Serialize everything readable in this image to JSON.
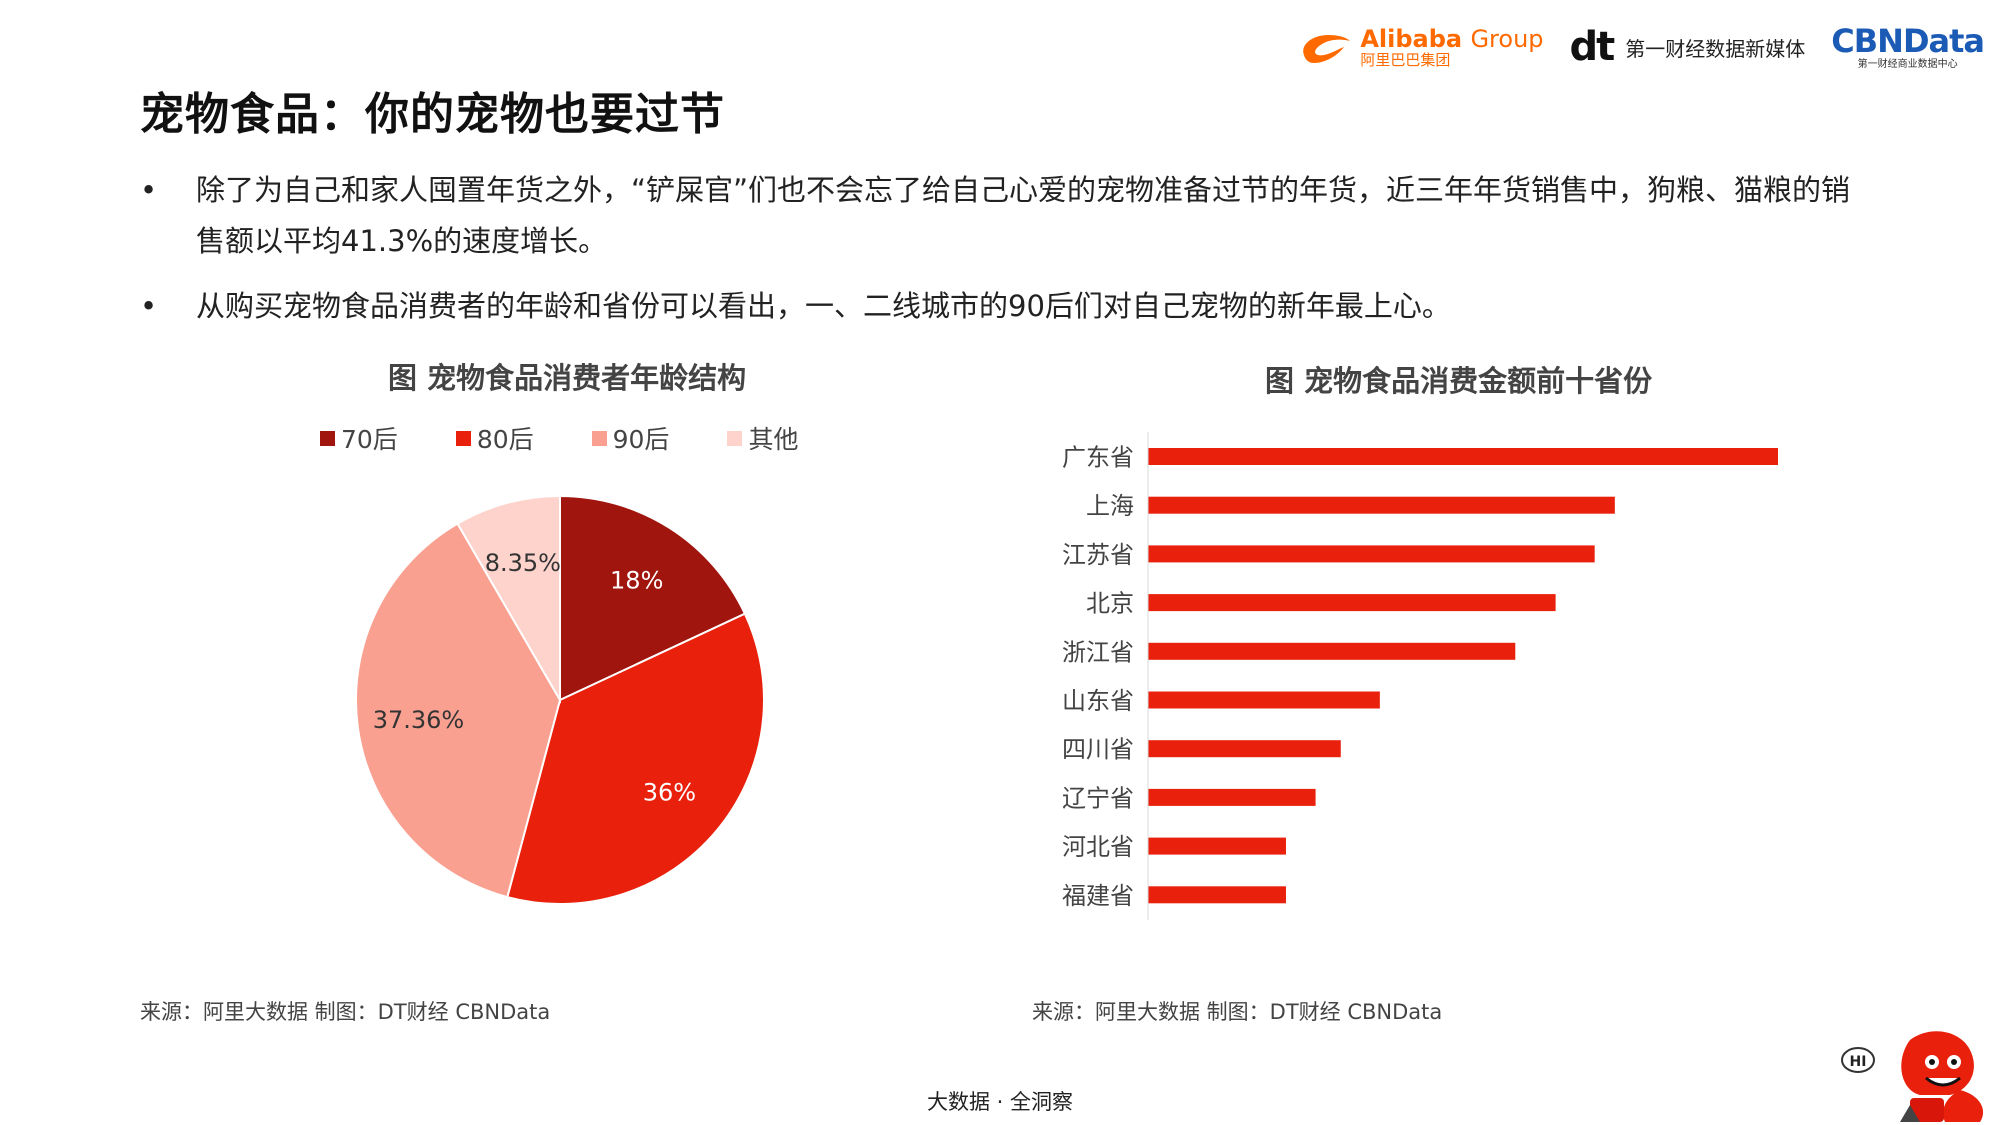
{
  "header": {
    "logos": {
      "alibaba_main": "Alibaba",
      "alibaba_group": "Group",
      "alibaba_cn": "阿里巴巴集团",
      "dt_mark": "dt",
      "dt_text": "第一财经数据新媒体",
      "cbn_main": "CBNData",
      "cbn_sub": "第一财经商业数据中心"
    }
  },
  "page": {
    "title": "宠物食品：你的宠物也要过节",
    "bullet_marker": "•",
    "bullets": [
      "除了为自己和家人囤置年货之外，“铲屎官”们也不会忘了给自己心爱的宠物准备过节的年货，近三年年货销售中，狗粮、猫粮的销售额以平均41.3%的速度增长。",
      "从购买宠物食品消费者的年龄和省份可以看出，一、二线城市的90后们对自己宠物的新年最上心。"
    ],
    "source_left": "来源：阿里大数据   制图：DT财经    CBNData",
    "source_right": "来源：阿里大数据   制图：DT财经    CBNData",
    "footer": "大数据 · 全洞察",
    "mascot_text": "HI"
  },
  "chart_data": [
    {
      "type": "pie",
      "title": "图 宠物食品消费者年龄结构",
      "legend_position": "top",
      "categories": [
        "70后",
        "80后",
        "90后",
        "其他"
      ],
      "values": [
        18,
        36,
        37.36,
        8.35
      ],
      "labels": [
        "18%",
        "36%",
        "37.36%",
        "8.35%"
      ],
      "colors": [
        "#a0150e",
        "#e8200c",
        "#f9a090",
        "#fdd3cc"
      ],
      "label_colors": [
        "#ffffff",
        "#ffffff",
        "#333333",
        "#333333"
      ]
    },
    {
      "type": "bar",
      "orientation": "horizontal",
      "title": "图 宠物食品消费金额前十省份",
      "categories": [
        "广东省",
        "上海",
        "江苏省",
        "北京",
        "浙江省",
        "山东省",
        "四川省",
        "辽宁省",
        "河北省",
        "福建省"
      ],
      "values": [
        100,
        74.1,
        70.9,
        64.7,
        58.3,
        36.8,
        30.6,
        26.6,
        21.9,
        21.9
      ],
      "color": "#e8200c",
      "xlim": [
        0,
        100
      ],
      "grid": false
    }
  ]
}
